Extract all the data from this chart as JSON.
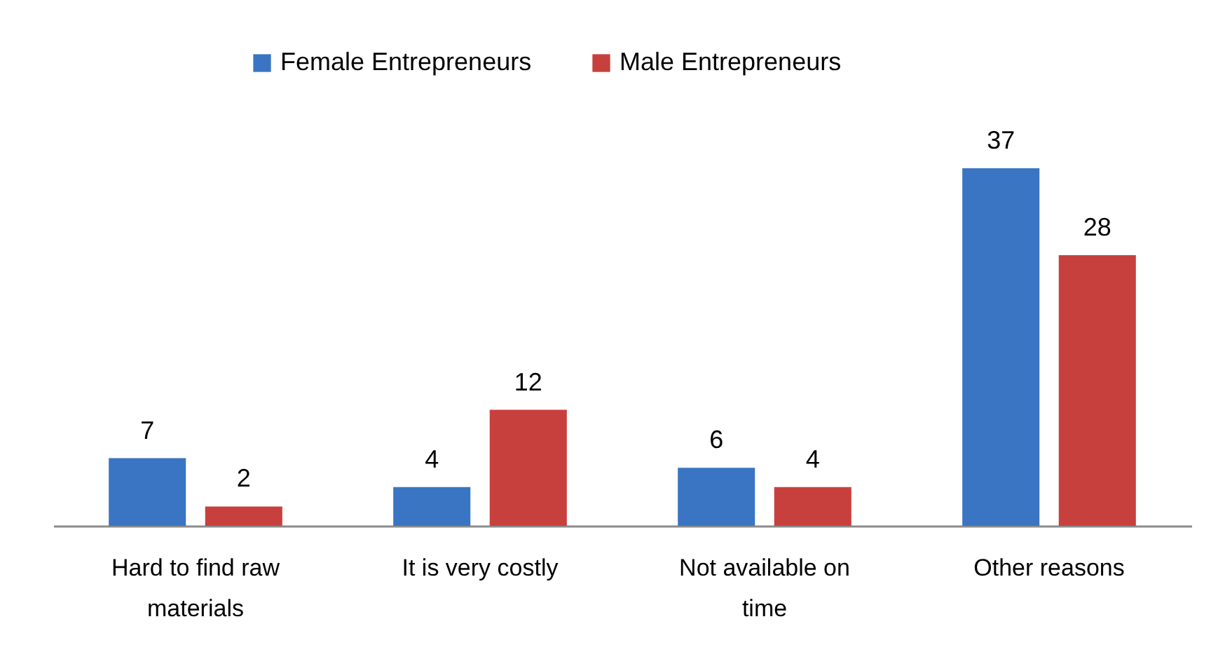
{
  "chart_data": {
    "type": "bar",
    "categories": [
      "Hard to find raw materials",
      "It is very costly",
      "Not available on time",
      "Other reasons"
    ],
    "series": [
      {
        "name": "Female Entrepreneurs",
        "color": "#3a75c4",
        "values": [
          7,
          4,
          6,
          37
        ]
      },
      {
        "name": "Male Entrepreneurs",
        "color": "#c8403d",
        "values": [
          2,
          12,
          4,
          28
        ]
      }
    ],
    "data_labels": true,
    "legend": "top",
    "grid": false
  }
}
